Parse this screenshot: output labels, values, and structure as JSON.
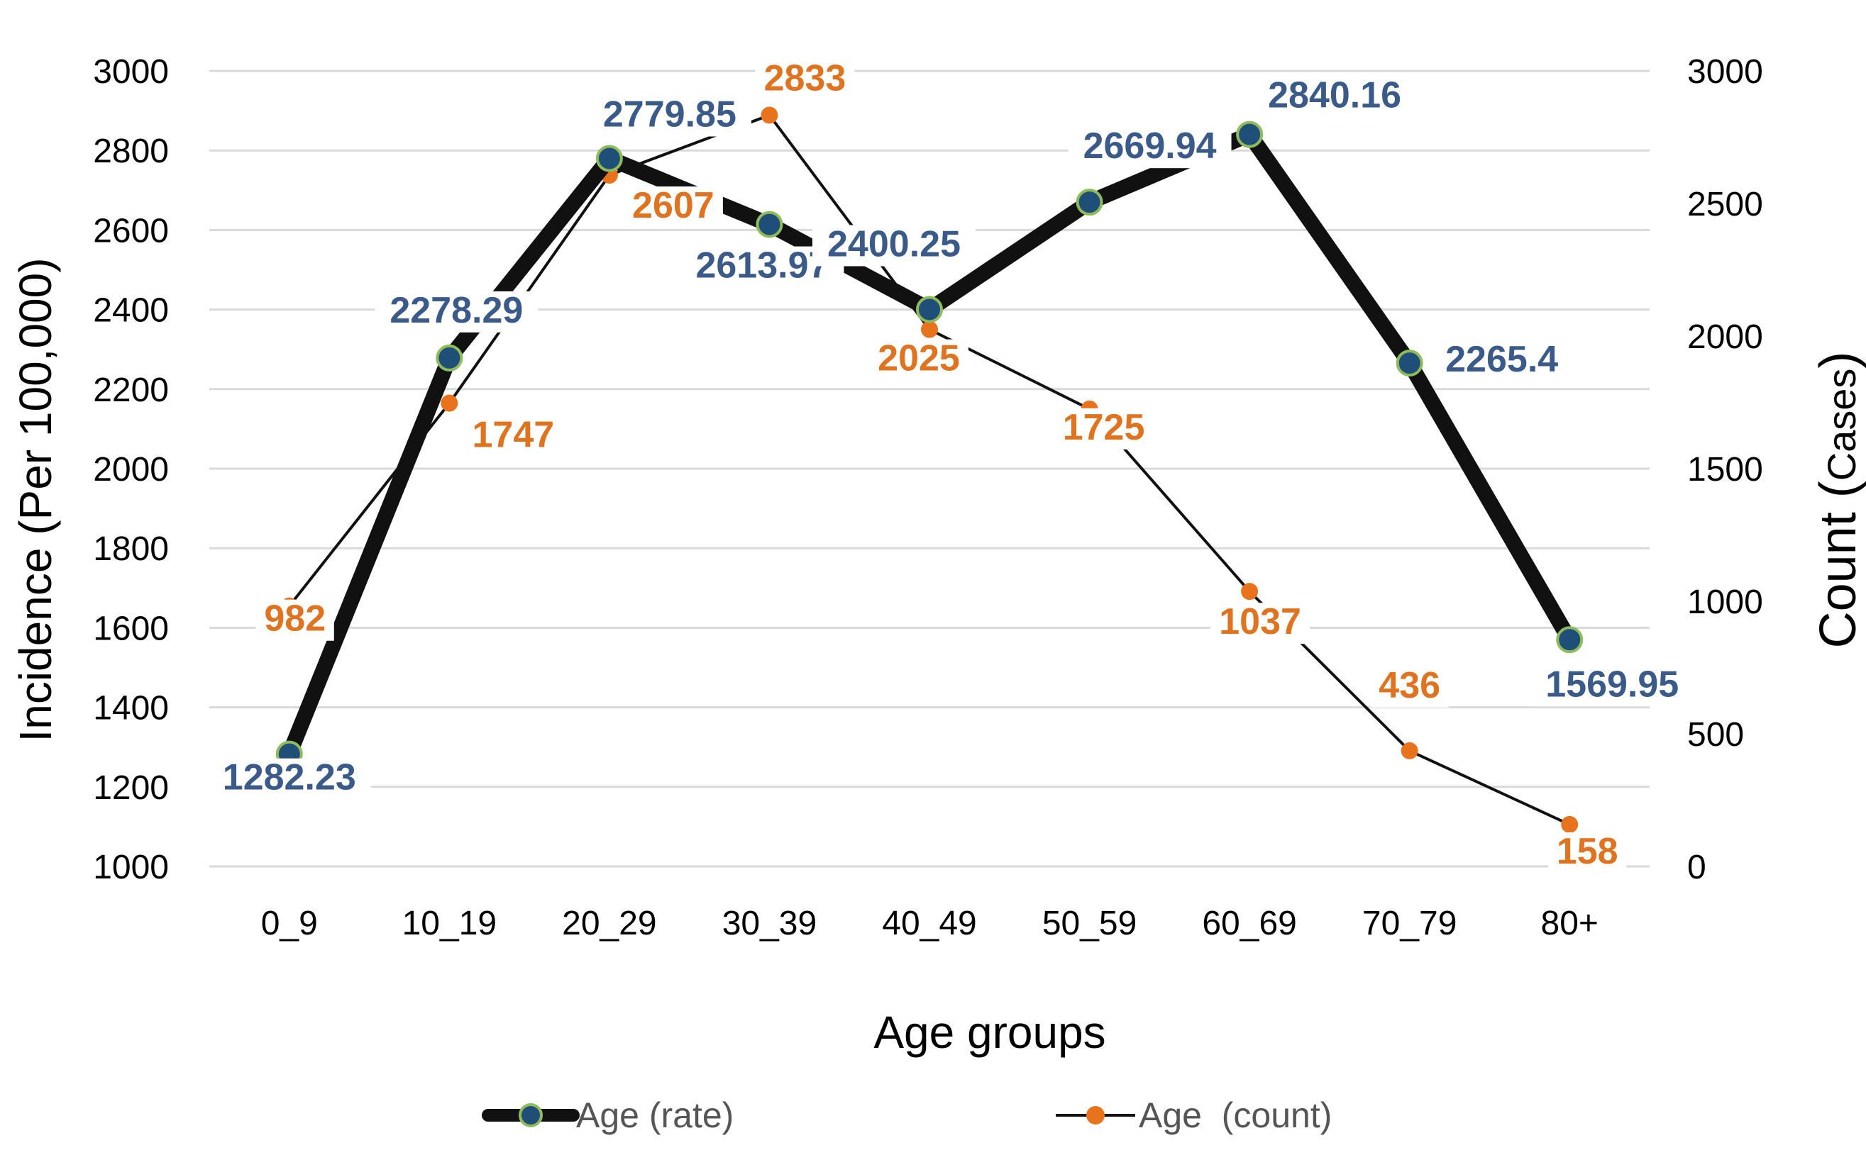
{
  "colors": {
    "rate_line": "#111111",
    "rate_marker": "#1f4e79",
    "rate_marker_edge": "#8fbc5a",
    "rate_label": "#3a5a8a",
    "count_line": "#111111",
    "count_marker": "#e8731c",
    "count_label": "#e07320",
    "grid": "#d9d9d9"
  },
  "chart_data": {
    "type": "line",
    "categories": [
      "0_9",
      "10_19",
      "20_29",
      "30_39",
      "40_49",
      "50_59",
      "60_69",
      "70_79",
      "80+"
    ],
    "xlabel": "Age groups",
    "ylabel_left": "Incidence (Per 100,000)",
    "ylabel_right_main": "Count (",
    "ylabel_right_small": "Cases",
    "ylabel_right_close": ")",
    "ylim_left": [
      1000,
      3000
    ],
    "yticks_left": [
      "1000",
      "1200",
      "1400",
      "1600",
      "1800",
      "2000",
      "2200",
      "2400",
      "2600",
      "2800",
      "3000"
    ],
    "ylim_right": [
      0,
      3000
    ],
    "yticks_right": [
      "0",
      "500",
      "1000",
      "1500",
      "2000",
      "2500",
      "3000"
    ],
    "grid": true,
    "legend_position": "bottom",
    "series": [
      {
        "name": "Age (rate)",
        "axis": "left",
        "values": [
          1282.23,
          2278.29,
          2779.85,
          2613.97,
          2400.25,
          2669.94,
          2840.16,
          2265.4,
          1569.95
        ],
        "labels": [
          "1282.23",
          "2278.29",
          "2779.85",
          "2613.97",
          "2400.25",
          "2669.94",
          "2840.16",
          "2265.4",
          "1569.95"
        ]
      },
      {
        "name": "Age  (count)",
        "axis": "right",
        "values": [
          982,
          1747,
          2607,
          2833,
          2025,
          1725,
          1037,
          436,
          158
        ],
        "labels": [
          "982",
          "1747",
          "2607",
          "2833",
          "2025",
          "1725",
          "1037",
          "436",
          "158"
        ]
      }
    ]
  }
}
